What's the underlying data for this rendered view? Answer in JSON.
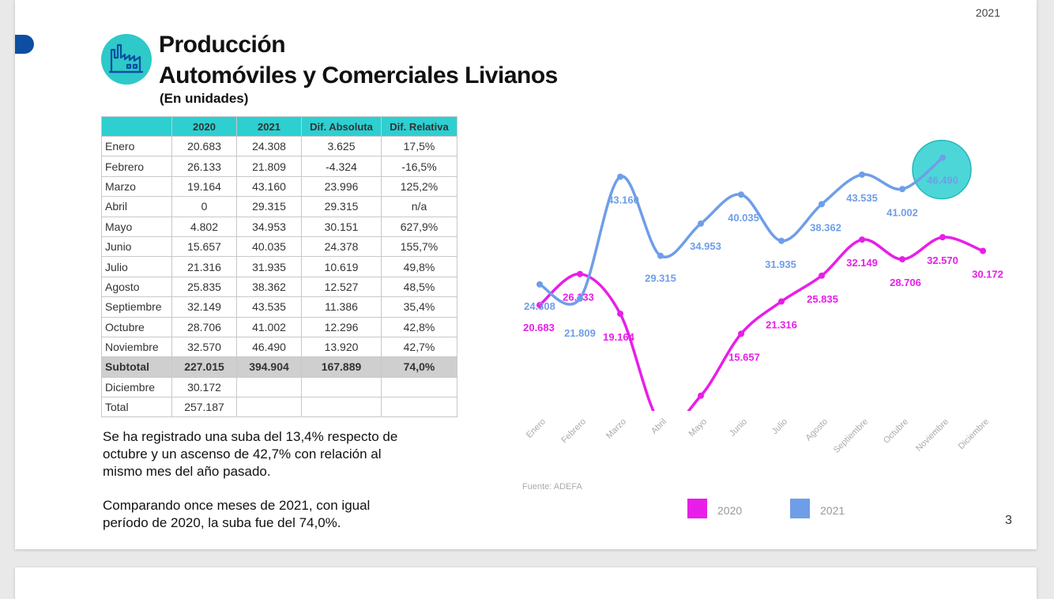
{
  "header": {
    "year": "2021",
    "page_number": "3"
  },
  "title": {
    "line1": "Producción",
    "line2": "Automóviles y Comerciales Livianos",
    "units": "(En unidades)"
  },
  "logo": {
    "icon": "factory-icon"
  },
  "table": {
    "headers": [
      "",
      "2020",
      "2021",
      "Dif. Absoluta",
      "Dif. Relativa"
    ],
    "rows": [
      [
        "Enero",
        "20.683",
        "24.308",
        "3.625",
        "17,5%"
      ],
      [
        "Febrero",
        "26.133",
        "21.809",
        "-4.324",
        "-16,5%"
      ],
      [
        "Marzo",
        "19.164",
        "43.160",
        "23.996",
        "125,2%"
      ],
      [
        "Abril",
        "0",
        "29.315",
        "29.315",
        "n/a"
      ],
      [
        "Mayo",
        "4.802",
        "34.953",
        "30.151",
        "627,9%"
      ],
      [
        "Junio",
        "15.657",
        "40.035",
        "24.378",
        "155,7%"
      ],
      [
        "Julio",
        "21.316",
        "31.935",
        "10.619",
        "49,8%"
      ],
      [
        "Agosto",
        "25.835",
        "38.362",
        "12.527",
        "48,5%"
      ],
      [
        "Septiembre",
        "32.149",
        "43.535",
        "11.386",
        "35,4%"
      ],
      [
        "Octubre",
        "28.706",
        "41.002",
        "12.296",
        "42,8%"
      ],
      [
        "Noviembre",
        "32.570",
        "46.490",
        "13.920",
        "42,7%"
      ]
    ],
    "subtotal": [
      "Subtotal",
      "227.015",
      "394.904",
      "167.889",
      "74,0%"
    ],
    "extra_rows": [
      [
        "Diciembre",
        "30.172",
        "",
        "",
        ""
      ],
      [
        "Total",
        "257.187",
        "",
        "",
        ""
      ]
    ]
  },
  "text": {
    "paragraph1": [
      "Se ha registrado una suba del 13,4% respecto de",
      "octubre y un ascenso de 42,7% con relación al",
      "mismo mes del año pasado."
    ],
    "paragraph2": [
      "Comparando once meses de 2021, con igual",
      "período de 2020, la suba fue del 74,0%."
    ]
  },
  "source": "Fuente: ADEFA",
  "chart_data": {
    "type": "line",
    "categories": [
      "Enero",
      "Febrero",
      "Marzo",
      "Abril",
      "Mayo",
      "Junio",
      "Julio",
      "Agosto",
      "Septiembre",
      "Octubre",
      "Noviembre",
      "Diciembre"
    ],
    "series": [
      {
        "name": "2020",
        "color": "#e81ee8",
        "values": [
          20683,
          26133,
          19164,
          0,
          4802,
          15657,
          21316,
          25835,
          32149,
          28706,
          32570,
          30172
        ],
        "labels": [
          "20.683",
          "26.133",
          "19.164",
          "",
          "",
          "15.657",
          "21.316",
          "25.835",
          "32.149",
          "28.706",
          "32.570",
          "30.172"
        ]
      },
      {
        "name": "2021",
        "color": "#6f9ee8",
        "values": [
          24308,
          21809,
          43160,
          29315,
          34953,
          40035,
          31935,
          38362,
          43535,
          41002,
          46490,
          null
        ],
        "labels": [
          "24.308",
          "21.809",
          "43.160",
          "29.315",
          "34.953",
          "40.035",
          "31.935",
          "38.362",
          "43.535",
          "41.002",
          "46.490",
          ""
        ]
      }
    ],
    "highlight": {
      "series": "2021",
      "category": "Noviembre",
      "color": "#2ecfd1"
    },
    "legend": {
      "placement": "bottom",
      "entries": [
        "2020",
        "2021"
      ]
    },
    "grid": false
  }
}
